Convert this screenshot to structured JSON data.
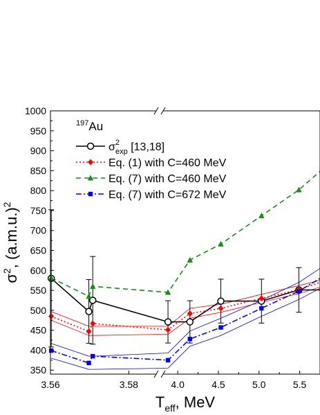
{
  "chart_data": {
    "type": "line",
    "xlabel_main": "T",
    "xlabel_sub": "eff",
    "xlabel_rest": ", MeV",
    "ylabel_main": "σ",
    "ylabel_sup": "2",
    "ylabel_rest": ", (a.m.u.)",
    "ylabel_sup2": "2",
    "ylim": [
      340,
      1000
    ],
    "x_segments": [
      {
        "xlim": [
          3.56,
          3.587
        ]
      },
      {
        "xlim": [
          3.82,
          5.75
        ]
      }
    ],
    "x_ticks": [
      {
        "value": 3.56,
        "label": "3.56"
      },
      {
        "value": 3.58,
        "label": "3.58"
      },
      {
        "value": 4.0,
        "label": "4.0"
      },
      {
        "value": 4.5,
        "label": "4.5"
      },
      {
        "value": 5.0,
        "label": "5.0"
      },
      {
        "value": 5.5,
        "label": "5.5"
      }
    ],
    "y_ticks": [
      350,
      400,
      450,
      500,
      550,
      600,
      650,
      700,
      750,
      800,
      850,
      900,
      950,
      1000
    ],
    "annotation": {
      "sup": "197",
      "main": "Au"
    },
    "series": [
      {
        "name_main": "σ",
        "name_sup": "2",
        "name_sub": "exp",
        "name_rest": " [13,18]",
        "color": "#000000",
        "dash": "",
        "marker": "circle",
        "points": [
          {
            "x": 3.5602,
            "y": 580,
            "err": 172
          },
          {
            "x": 3.5698,
            "y": 497,
            "err": 80
          },
          {
            "x": 3.5708,
            "y": 525,
            "err": 110
          },
          {
            "x": 3.88,
            "y": 471,
            "err": 53
          },
          {
            "x": 4.15,
            "y": 471,
            "err": 53
          },
          {
            "x": 4.53,
            "y": 523,
            "err": 55
          },
          {
            "x": 5.03,
            "y": 523,
            "err": 55
          },
          {
            "x": 5.49,
            "y": 551,
            "err": 56
          },
          {
            "x": 5.75,
            "y": 551
          }
        ]
      },
      {
        "name_main": "Eq. (1) with C=460 MeV",
        "color": "#ff0000",
        "dash": "2,3",
        "marker": "diamond",
        "points": [
          {
            "x": 3.5602,
            "y": 485
          },
          {
            "x": 3.5698,
            "y": 447
          },
          {
            "x": 3.5708,
            "y": 467
          },
          {
            "x": 3.88,
            "y": 451
          },
          {
            "x": 4.15,
            "y": 492
          },
          {
            "x": 4.53,
            "y": 505
          },
          {
            "x": 5.03,
            "y": 530
          },
          {
            "x": 5.49,
            "y": 552
          },
          {
            "x": 5.75,
            "y": 570
          }
        ],
        "band_upper": [
          {
            "x": 3.5602,
            "y": 497
          },
          {
            "x": 3.5698,
            "y": 460
          },
          {
            "x": 3.5708,
            "y": 460
          },
          {
            "x": 3.88,
            "y": 460
          },
          {
            "x": 4.15,
            "y": 505
          },
          {
            "x": 4.53,
            "y": 515
          },
          {
            "x": 5.03,
            "y": 540
          },
          {
            "x": 5.49,
            "y": 562
          },
          {
            "x": 5.75,
            "y": 575
          }
        ],
        "band_lower": [
          {
            "x": 3.5602,
            "y": 475
          },
          {
            "x": 3.5698,
            "y": 437
          },
          {
            "x": 3.5708,
            "y": 437
          },
          {
            "x": 3.88,
            "y": 440
          },
          {
            "x": 4.15,
            "y": 480
          },
          {
            "x": 4.53,
            "y": 495
          },
          {
            "x": 5.03,
            "y": 520
          },
          {
            "x": 5.49,
            "y": 542
          },
          {
            "x": 5.75,
            "y": 558
          }
        ]
      },
      {
        "name_main": "Eq. (7) with C=460 MeV",
        "color": "#1a8a1a",
        "dash": "7,5",
        "marker": "triangle",
        "points": [
          {
            "x": 3.5602,
            "y": 581
          },
          {
            "x": 3.5698,
            "y": 535
          },
          {
            "x": 3.5708,
            "y": 560
          },
          {
            "x": 3.88,
            "y": 545
          },
          {
            "x": 4.15,
            "y": 626
          },
          {
            "x": 4.53,
            "y": 666
          },
          {
            "x": 5.03,
            "y": 737
          },
          {
            "x": 5.49,
            "y": 802
          },
          {
            "x": 5.75,
            "y": 848
          }
        ]
      },
      {
        "name_main": "Eq. (7) with C=672 MeV",
        "color": "#0000ff",
        "dash": "8,3,2,3",
        "marker": "square",
        "points": [
          {
            "x": 3.5602,
            "y": 399
          },
          {
            "x": 3.5698,
            "y": 368
          },
          {
            "x": 3.5708,
            "y": 385
          },
          {
            "x": 3.88,
            "y": 375
          },
          {
            "x": 4.15,
            "y": 428
          },
          {
            "x": 4.53,
            "y": 457
          },
          {
            "x": 5.03,
            "y": 505
          },
          {
            "x": 5.49,
            "y": 548
          },
          {
            "x": 5.75,
            "y": 580
          }
        ],
        "band_upper": [
          {
            "x": 3.5602,
            "y": 417
          },
          {
            "x": 3.5698,
            "y": 385
          },
          {
            "x": 3.5708,
            "y": 385
          },
          {
            "x": 3.88,
            "y": 393
          },
          {
            "x": 4.15,
            "y": 448
          },
          {
            "x": 4.53,
            "y": 480
          },
          {
            "x": 5.03,
            "y": 525
          },
          {
            "x": 5.49,
            "y": 570
          },
          {
            "x": 5.75,
            "y": 605
          }
        ],
        "band_lower": [
          {
            "x": 3.5602,
            "y": 380
          },
          {
            "x": 3.5698,
            "y": 352
          },
          {
            "x": 3.5708,
            "y": 352
          },
          {
            "x": 3.88,
            "y": 355
          },
          {
            "x": 4.15,
            "y": 410
          },
          {
            "x": 4.53,
            "y": 437
          },
          {
            "x": 5.03,
            "y": 485
          },
          {
            "x": 5.49,
            "y": 527
          },
          {
            "x": 5.75,
            "y": 555
          }
        ]
      }
    ]
  }
}
